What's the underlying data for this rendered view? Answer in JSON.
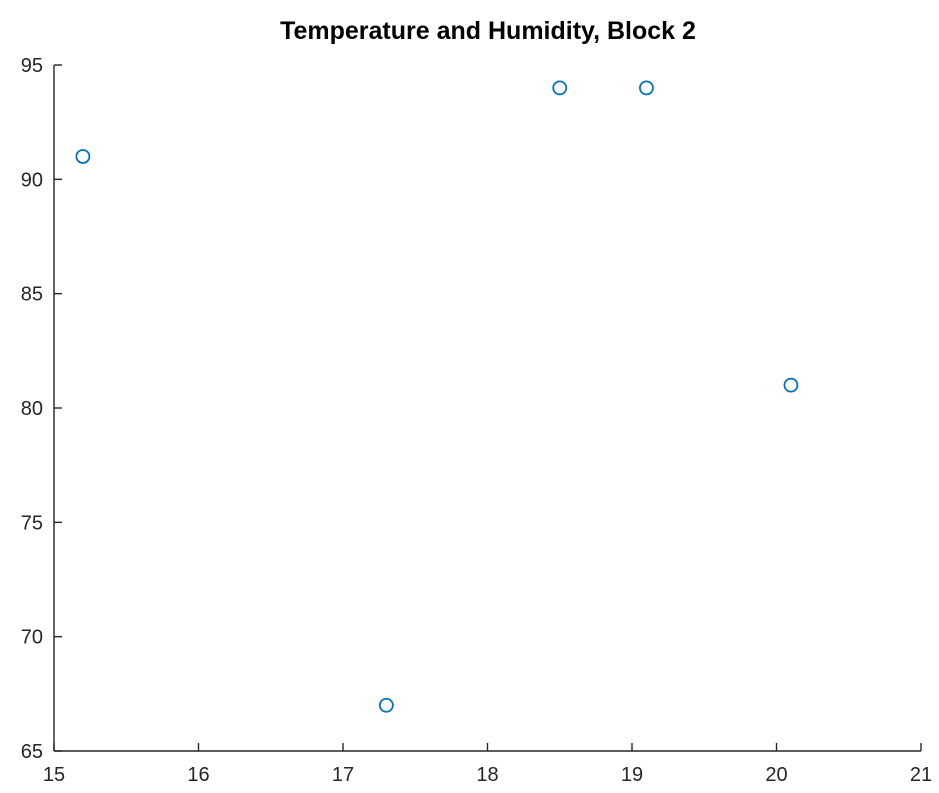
{
  "chart_data": {
    "type": "scatter",
    "title": "Temperature and Humidity, Block 2",
    "xlabel": "",
    "ylabel": "",
    "xlim": [
      15,
      21
    ],
    "ylim": [
      65,
      95
    ],
    "xticks": [
      "15",
      "16",
      "17",
      "18",
      "19",
      "20",
      "21"
    ],
    "yticks": [
      "65",
      "70",
      "75",
      "80",
      "85",
      "90",
      "95"
    ],
    "grid": false,
    "legend": false,
    "marker": "circle",
    "series": [
      {
        "color": "#0072BD",
        "points": [
          {
            "x": 15.2,
            "y": 91
          },
          {
            "x": 17.3,
            "y": 67
          },
          {
            "x": 18.5,
            "y": 94
          },
          {
            "x": 19.1,
            "y": 94
          },
          {
            "x": 20.1,
            "y": 81
          }
        ]
      }
    ]
  }
}
